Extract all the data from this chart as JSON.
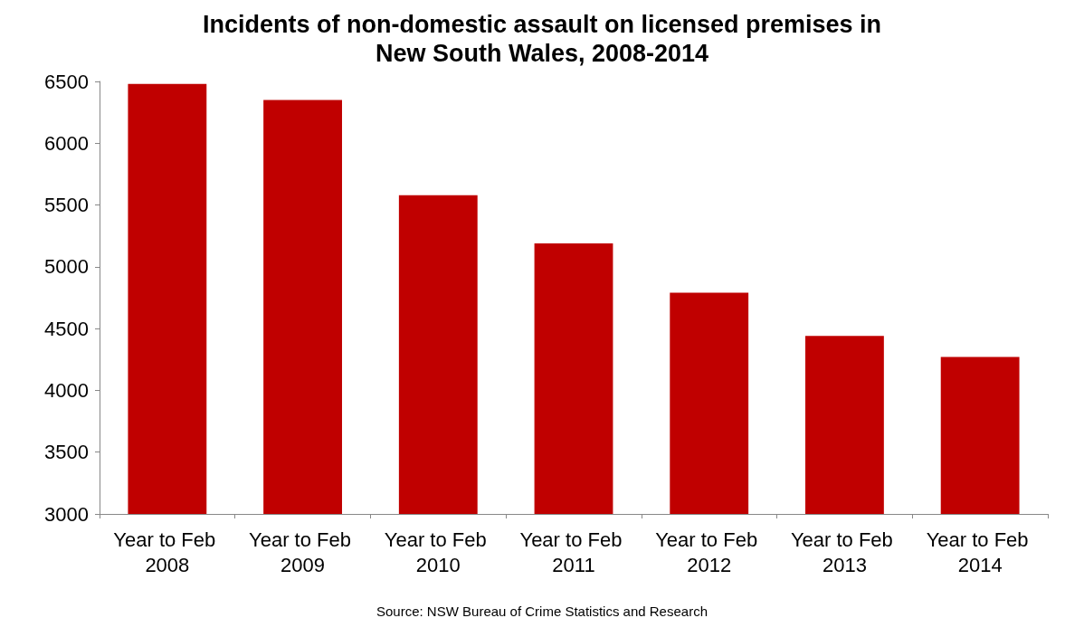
{
  "chart_data": {
    "type": "bar",
    "title": "Incidents of non-domestic assault on licensed premises in\nNew South Wales, 2008-2014",
    "categories": [
      "Year to Feb 2008",
      "Year to Feb 2009",
      "Year to Feb 2010",
      "Year to Feb 2011",
      "Year to Feb 2012",
      "Year to Feb 2013",
      "Year to Feb 2014"
    ],
    "values": [
      6480,
      6350,
      5580,
      5190,
      4790,
      4440,
      4270
    ],
    "color": "#c00000",
    "ylim": [
      3000,
      6500
    ],
    "yticks": [
      3000,
      3500,
      4000,
      4500,
      5000,
      5500,
      6000,
      6500
    ],
    "grid": false,
    "annotations": [
      "Source: NSW Bureau of Crime Statistics and Research"
    ]
  }
}
